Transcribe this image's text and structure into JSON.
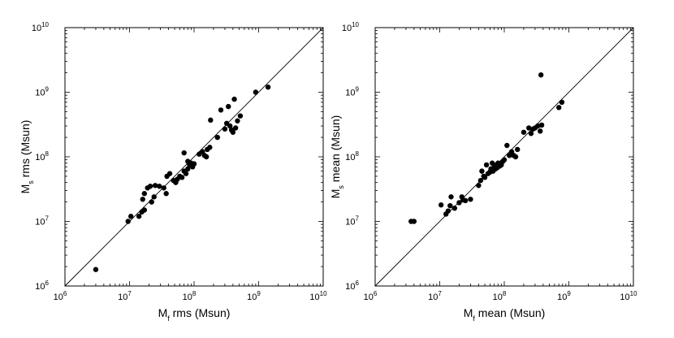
{
  "chart_data": [
    {
      "type": "scatter",
      "scale": "log-log",
      "xlabel": {
        "main": "M",
        "sub": "f",
        "rest": " rms (Msun)"
      },
      "ylabel": {
        "main": "M",
        "sub": "s",
        "rest": " rms (Msun)"
      },
      "xlim": [
        1000000.0,
        10000000000.0
      ],
      "ylim": [
        1000000.0,
        10000000000.0
      ],
      "ticks": [
        {
          "base": "10",
          "exp": "6"
        },
        {
          "base": "10",
          "exp": "7"
        },
        {
          "base": "10",
          "exp": "8"
        },
        {
          "base": "10",
          "exp": "9"
        },
        {
          "base": "10",
          "exp": "10"
        }
      ],
      "reference_line": "y = x",
      "points": [
        [
          3000000.0,
          1800000.0
        ],
        [
          9500000.0,
          10000000.0
        ],
        [
          10500000.0,
          12000000.0
        ],
        [
          14000000.0,
          12000000.0
        ],
        [
          15500000.0,
          14000000.0
        ],
        [
          17000000.0,
          15000000.0
        ],
        [
          16000000.0,
          22000000.0
        ],
        [
          17000000.0,
          27000000.0
        ],
        [
          22000000.0,
          20000000.0
        ],
        [
          24000000.0,
          24000000.0
        ],
        [
          19000000.0,
          33000000.0
        ],
        [
          21000000.0,
          35000000.0
        ],
        [
          25000000.0,
          36000000.0
        ],
        [
          29000000.0,
          35000000.0
        ],
        [
          34000000.0,
          33000000.0
        ],
        [
          37000000.0,
          27000000.0
        ],
        [
          38000000.0,
          50000000.0
        ],
        [
          42000000.0,
          55000000.0
        ],
        [
          48000000.0,
          43000000.0
        ],
        [
          52000000.0,
          40000000.0
        ],
        [
          55000000.0,
          45000000.0
        ],
        [
          60000000.0,
          50000000.0
        ],
        [
          65000000.0,
          48000000.0
        ],
        [
          70000000.0,
          60000000.0
        ],
        [
          75000000.0,
          55000000.0
        ],
        [
          80000000.0,
          65000000.0
        ],
        [
          85000000.0,
          75000000.0
        ],
        [
          90000000.0,
          80000000.0
        ],
        [
          80000000.0,
          85000000.0
        ],
        [
          95000000.0,
          70000000.0
        ],
        [
          100000000.0,
          78000000.0
        ],
        [
          70000000.0,
          115000000.0
        ],
        [
          120000000.0,
          110000000.0
        ],
        [
          135000000.0,
          120000000.0
        ],
        [
          145000000.0,
          105000000.0
        ],
        [
          155000000.0,
          100000000.0
        ],
        [
          160000000.0,
          130000000.0
        ],
        [
          175000000.0,
          140000000.0
        ],
        [
          180000000.0,
          370000000.0
        ],
        [
          230000000.0,
          200000000.0
        ],
        [
          260000000.0,
          530000000.0
        ],
        [
          300000000.0,
          270000000.0
        ],
        [
          320000000.0,
          330000000.0
        ],
        [
          340000000.0,
          600000000.0
        ],
        [
          360000000.0,
          300000000.0
        ],
        [
          380000000.0,
          260000000.0
        ],
        [
          400000000.0,
          240000000.0
        ],
        [
          420000000.0,
          780000000.0
        ],
        [
          440000000.0,
          280000000.0
        ],
        [
          470000000.0,
          360000000.0
        ],
        [
          520000000.0,
          430000000.0
        ],
        [
          900000000.0,
          1000000000.0
        ],
        [
          1400000000.0,
          1200000000.0
        ]
      ]
    },
    {
      "type": "scatter",
      "scale": "log-log",
      "xlabel": {
        "main": "M",
        "sub": "f",
        "rest": " mean (Msun)"
      },
      "ylabel": {
        "main": "M",
        "sub": "s",
        "rest": " mean (Msun)"
      },
      "xlim": [
        1000000.0,
        10000000000.0
      ],
      "ylim": [
        1000000.0,
        10000000000.0
      ],
      "ticks": [
        {
          "base": "10",
          "exp": "6"
        },
        {
          "base": "10",
          "exp": "7"
        },
        {
          "base": "10",
          "exp": "8"
        },
        {
          "base": "10",
          "exp": "9"
        },
        {
          "base": "10",
          "exp": "10"
        }
      ],
      "reference_line": "y = x",
      "points": [
        [
          3600000.0,
          10000000.0
        ],
        [
          4000000.0,
          10000000.0
        ],
        [
          10500000.0,
          18000000.0
        ],
        [
          12500000.0,
          13000000.0
        ],
        [
          13500000.0,
          14500000.0
        ],
        [
          14500000.0,
          17500000.0
        ],
        [
          15000000.0,
          24000000.0
        ],
        [
          17000000.0,
          16000000.0
        ],
        [
          20000000.0,
          19500000.0
        ],
        [
          22000000.0,
          24000000.0
        ],
        [
          23000000.0,
          21500000.0
        ],
        [
          25000000.0,
          21000000.0
        ],
        [
          30000000.0,
          22000000.0
        ],
        [
          40000000.0,
          36000000.0
        ],
        [
          43000000.0,
          43000000.0
        ],
        [
          45000000.0,
          60000000.0
        ],
        [
          48000000.0,
          50000000.0
        ],
        [
          50000000.0,
          48000000.0
        ],
        [
          53000000.0,
          75000000.0
        ],
        [
          56000000.0,
          55000000.0
        ],
        [
          60000000.0,
          58000000.0
        ],
        [
          62000000.0,
          65000000.0
        ],
        [
          65000000.0,
          80000000.0
        ],
        [
          67000000.0,
          60000000.0
        ],
        [
          70000000.0,
          70000000.0
        ],
        [
          73000000.0,
          65000000.0
        ],
        [
          75000000.0,
          75000000.0
        ],
        [
          78000000.0,
          68000000.0
        ],
        [
          80000000.0,
          80000000.0
        ],
        [
          85000000.0,
          72000000.0
        ],
        [
          90000000.0,
          75000000.0
        ],
        [
          95000000.0,
          85000000.0
        ],
        [
          100000000.0,
          90000000.0
        ],
        [
          110000000.0,
          150000000.0
        ],
        [
          120000000.0,
          105000000.0
        ],
        [
          130000000.0,
          120000000.0
        ],
        [
          140000000.0,
          105000000.0
        ],
        [
          150000000.0,
          100000000.0
        ],
        [
          160000000.0,
          130000000.0
        ],
        [
          200000000.0,
          240000000.0
        ],
        [
          240000000.0,
          280000000.0
        ],
        [
          260000000.0,
          230000000.0
        ],
        [
          280000000.0,
          270000000.0
        ],
        [
          300000000.0,
          280000000.0
        ],
        [
          330000000.0,
          300000000.0
        ],
        [
          360000000.0,
          250000000.0
        ],
        [
          380000000.0,
          310000000.0
        ],
        [
          370000000.0,
          1850000000.0
        ],
        [
          700000000.0,
          580000000.0
        ],
        [
          780000000.0,
          700000000.0
        ]
      ]
    }
  ]
}
